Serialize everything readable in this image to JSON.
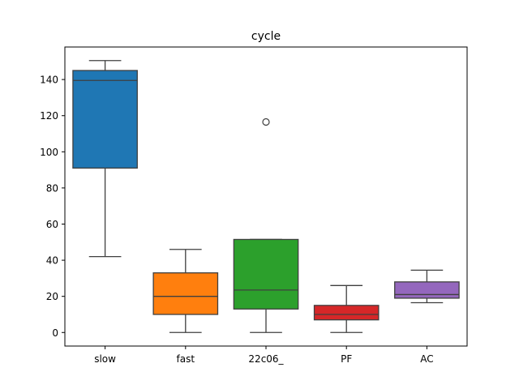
{
  "chart_data": {
    "type": "box",
    "title": "cycle",
    "xlabel": "",
    "ylabel": "",
    "ylim": [
      -7.5,
      158
    ],
    "yticks": [
      0,
      20,
      40,
      60,
      80,
      100,
      120,
      140
    ],
    "grid": false,
    "categories": [
      "slow",
      "fast",
      "22c06_",
      "PF",
      "AC"
    ],
    "boxes": [
      {
        "category": "slow",
        "color": "#1f77b4",
        "whisker_low": 42,
        "q1": 91,
        "median": 139.5,
        "q3": 145,
        "whisker_high": 150.5,
        "outliers": []
      },
      {
        "category": "fast",
        "color": "#ff7f0e",
        "whisker_low": 0,
        "q1": 10,
        "median": 20,
        "q3": 33,
        "whisker_high": 46,
        "outliers": []
      },
      {
        "category": "22c06_",
        "color": "#2ca02c",
        "whisker_low": 0,
        "q1": 13,
        "median": 23.5,
        "q3": 51.5,
        "whisker_high": 51.5,
        "outliers": [
          116.5
        ]
      },
      {
        "category": "PF",
        "color": "#d62728",
        "whisker_low": 0,
        "q1": 7,
        "median": 10,
        "q3": 15,
        "whisker_high": 26,
        "outliers": []
      },
      {
        "category": "AC",
        "color": "#9467bd",
        "whisker_low": 16.5,
        "q1": 19,
        "median": 21,
        "q3": 28,
        "whisker_high": 34.5,
        "outliers": []
      }
    ]
  }
}
